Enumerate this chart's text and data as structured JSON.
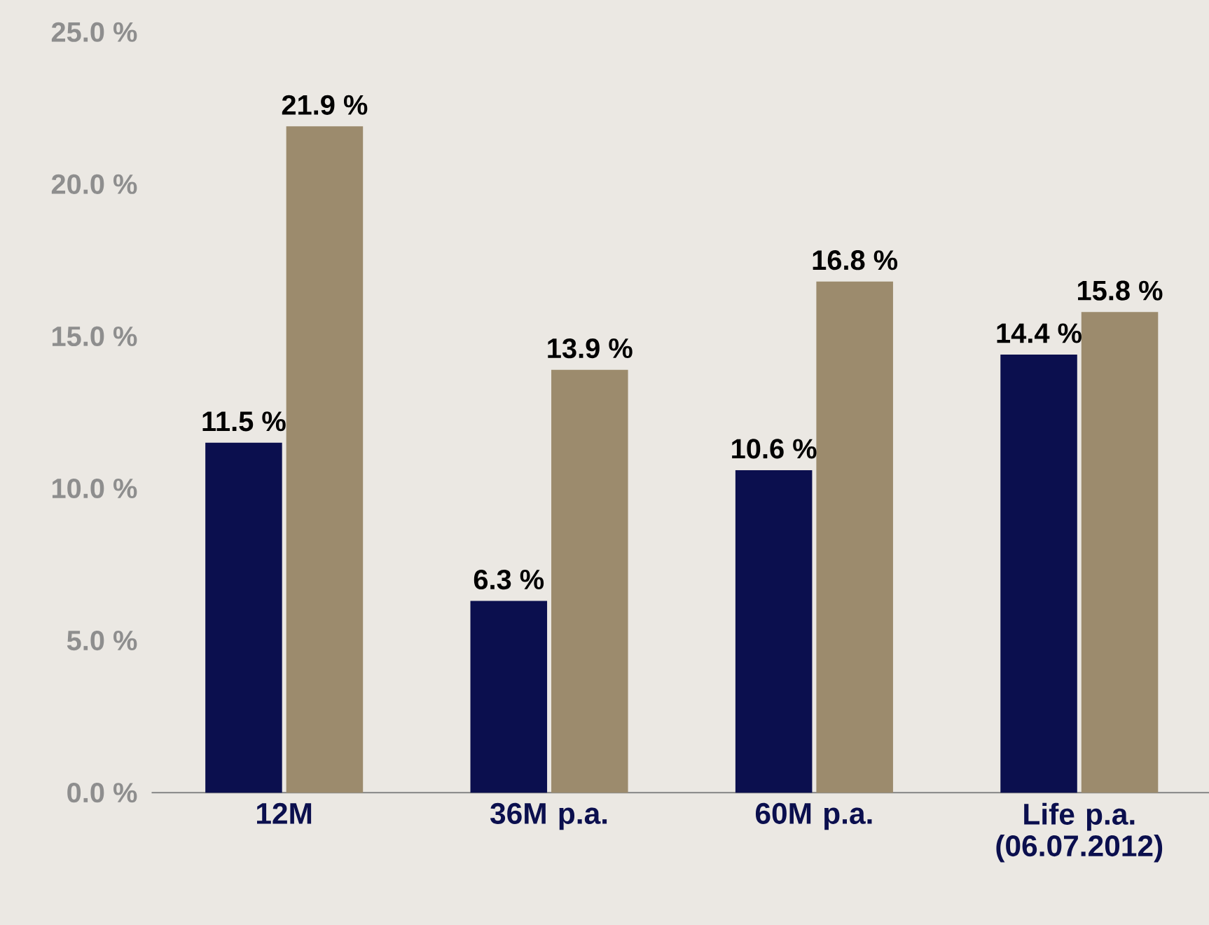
{
  "chart_data": {
    "type": "bar",
    "categories": [
      "12M",
      "36M p.a.",
      "60M p.a.",
      "Life p.a. (06.07.2012)"
    ],
    "series": [
      {
        "color": "#0b0f4e",
        "values": [
          11.5,
          6.3,
          10.6,
          14.4
        ],
        "value_labels": [
          "11.5 %",
          "6.3 %",
          "10.6 %",
          "14.4 %"
        ]
      },
      {
        "color": "#9c8b6d",
        "values": [
          21.9,
          13.9,
          16.8,
          15.8
        ],
        "value_labels": [
          "21.9  %",
          "13.9  %",
          "16.8 %",
          "15.8 %"
        ]
      }
    ],
    "ylim": [
      0,
      25
    ],
    "yticks": [
      {
        "value": 0,
        "label": "0.0 %"
      },
      {
        "value": 5,
        "label": "5.0 %"
      },
      {
        "value": 10,
        "label": "10.0 %"
      },
      {
        "value": 15,
        "label": "15.0 %"
      },
      {
        "value": 20,
        "label": "20.0 %"
      },
      {
        "value": 25,
        "label": "25.0 %"
      }
    ],
    "grid": false
  }
}
